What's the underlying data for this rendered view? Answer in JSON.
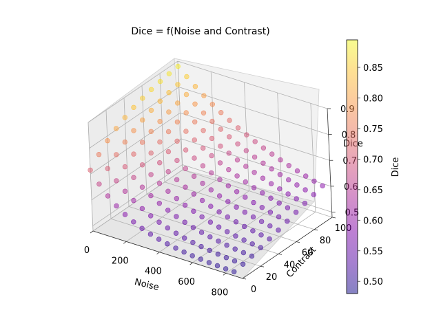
{
  "chart_data": {
    "type": "scatter",
    "projection": "3d",
    "title": "Dice = f(Noise and Contrast)",
    "xlabel": "Noise",
    "ylabel": "Contrast",
    "zlabel": "Dice",
    "xlim": [
      0,
      900
    ],
    "ylim": [
      0,
      100
    ],
    "zlim": [
      0.48,
      0.9
    ],
    "x_ticks": [
      "0",
      "200",
      "400",
      "600",
      "800"
    ],
    "y_ticks": [
      "0",
      "20",
      "40",
      "60",
      "80",
      "100"
    ],
    "z_ticks": [
      "0.5",
      "0.6",
      "0.7",
      "0.8",
      "0.9"
    ],
    "grid": true,
    "colormap": "plasma",
    "marker_alpha": 0.5,
    "noise_levels": [
      0,
      50,
      100,
      150,
      200,
      250,
      300,
      350,
      400,
      450,
      500,
      550,
      600,
      650,
      700,
      750,
      800,
      850
    ],
    "contrast_levels": [
      0,
      10,
      20,
      30,
      40,
      50,
      60,
      70,
      80,
      90,
      100
    ],
    "dice_model": {
      "floor": 0.49,
      "peak": 0.9,
      "noise_scale": 230,
      "contrast_scale": 45
    },
    "colorbar": {
      "label": "Dice",
      "range": [
        0.48,
        0.895
      ],
      "ticks": [
        "0.50",
        "0.55",
        "0.60",
        "0.65",
        "0.70",
        "0.75",
        "0.80",
        "0.85"
      ],
      "tick_values": [
        0.5,
        0.55,
        0.6,
        0.65,
        0.7,
        0.75,
        0.8,
        0.85
      ]
    }
  }
}
